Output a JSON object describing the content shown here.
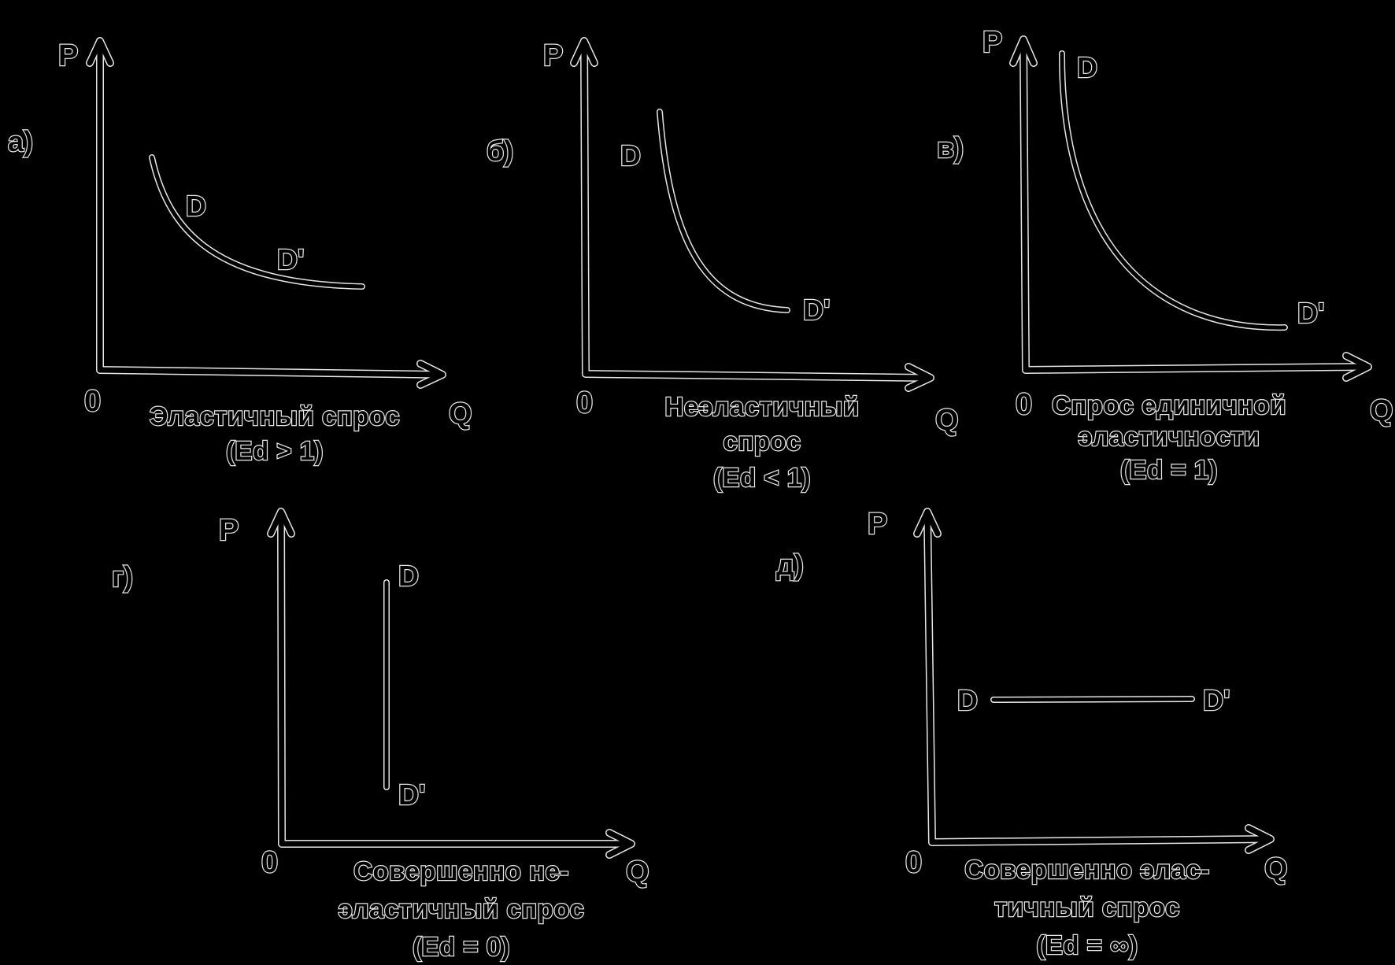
{
  "colors": {
    "background": "#000000",
    "lines": "#e6e6e6",
    "text_outline": "#e8e8e8"
  },
  "panels": {
    "a": {
      "panel_label": "а)",
      "y_axis": "P",
      "x_axis": "Q",
      "origin": "0",
      "curve_start": "D",
      "curve_end": "D'",
      "caption_lines": [
        "Эластичный спрос",
        "(Ed > 1)"
      ]
    },
    "b": {
      "panel_label": "б)",
      "y_axis": "P",
      "x_axis": "Q",
      "origin": "0",
      "curve_start": "D",
      "curve_end": "D'",
      "caption_lines": [
        "Неэластичный",
        "спрос",
        "(Ed < 1)"
      ]
    },
    "v": {
      "panel_label": "в)",
      "y_axis": "P",
      "x_axis": "Q",
      "origin": "0",
      "curve_start": "D",
      "curve_end": "D'",
      "caption_lines": [
        "Спрос единичной",
        "эластичности",
        "(Ed = 1)"
      ]
    },
    "g": {
      "panel_label": "г)",
      "y_axis": "P",
      "x_axis": "Q",
      "origin": "0",
      "curve_start": "D",
      "curve_end": "D'",
      "caption_lines": [
        "Совершенно не-",
        "эластичный спрос",
        "(Ed = 0)"
      ]
    },
    "d": {
      "panel_label": "д)",
      "y_axis": "P",
      "x_axis": "Q",
      "origin": "0",
      "curve_start": "D",
      "curve_end": "D'",
      "caption_lines": [
        "Совершенно элас-",
        "тичный спрос",
        "(Ed = ∞)"
      ]
    }
  }
}
